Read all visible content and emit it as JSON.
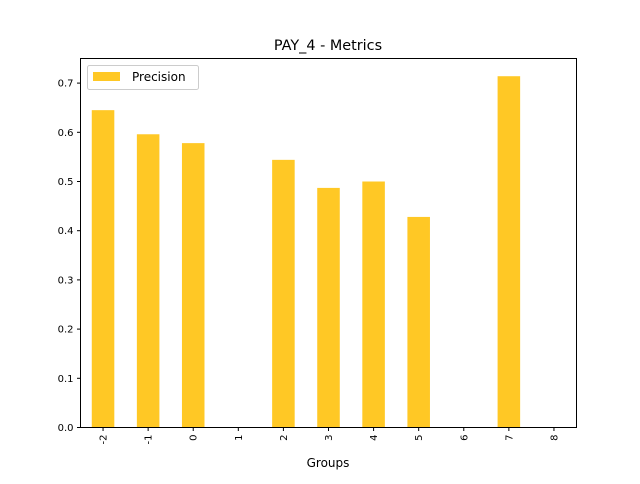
{
  "chart_data": {
    "type": "bar",
    "title": "PAY_4 - Metrics",
    "xlabel": "Groups",
    "ylabel": "",
    "categories": [
      "-2",
      "-1",
      "0",
      "1",
      "2",
      "3",
      "4",
      "5",
      "6",
      "7",
      "8"
    ],
    "series": [
      {
        "name": "Precision",
        "color": "#ffc825",
        "values": [
          0.645,
          0.596,
          0.578,
          0.0,
          0.544,
          0.487,
          0.5,
          0.428,
          0.0,
          0.714,
          0.0
        ]
      }
    ],
    "ylim": [
      0,
      0.75
    ],
    "yticks": [
      "0.0",
      "0.1",
      "0.2",
      "0.3",
      "0.4",
      "0.5",
      "0.6",
      "0.7"
    ],
    "grid": false,
    "legend": "upper-left"
  }
}
